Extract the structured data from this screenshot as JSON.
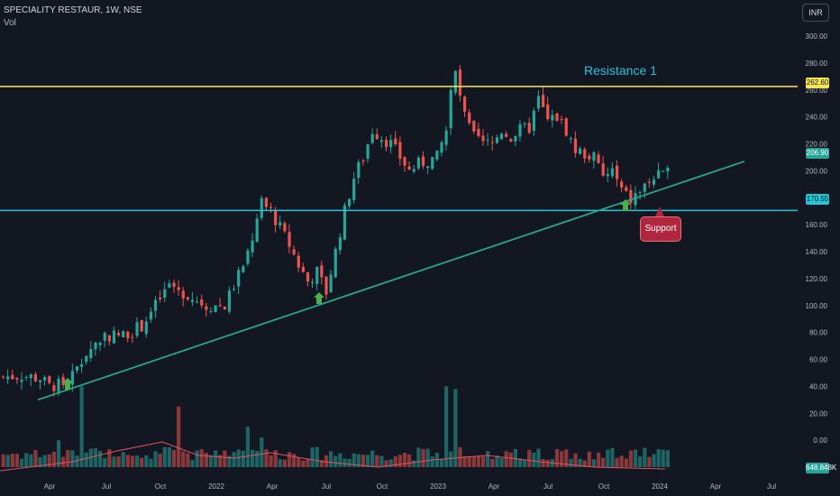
{
  "header": {
    "symbol": "SPECIALITY RESTAUR, 1W, NSE",
    "vol_label": "Vol",
    "currency": "INR"
  },
  "colors": {
    "up": "#26a69a",
    "down": "#ef5350",
    "resistance": "#f5e653",
    "support_line": "#26c6da",
    "trend": "#2aa58a"
  },
  "annotations": {
    "resistance_label": "Resistance 1",
    "support_label": "Support"
  },
  "price_tags": {
    "resistance": "262.60",
    "last": "206.90",
    "support": "170.55",
    "vol": "648.848K"
  },
  "chart_data": {
    "type": "candlestick",
    "title": "SPECIALITY RESTAUR, 1W, NSE",
    "y_ticks": [
      300,
      280,
      260,
      240,
      220,
      200,
      180,
      160,
      140,
      120,
      100,
      80,
      60,
      40,
      20,
      0,
      -20
    ],
    "ylim": [
      -20,
      300
    ],
    "x_ticks": [
      "Apr",
      "Jul",
      "Oct",
      "2022",
      "Apr",
      "Jul",
      "Oct",
      "2023",
      "Apr",
      "Jul",
      "Oct",
      "2024",
      "Apr",
      "Jul"
    ],
    "horizontal_lines": [
      {
        "name": "Resistance 1",
        "value": 262.6
      },
      {
        "name": "Support",
        "value": 170.55
      }
    ],
    "trendline": {
      "from": {
        "date": "2021-03",
        "price": 30
      },
      "to": {
        "date": "2024-06",
        "price": 207
      }
    },
    "price_path": [
      [
        0,
        47
      ],
      [
        4,
        48
      ],
      [
        8,
        46
      ],
      [
        10,
        40
      ],
      [
        14,
        42
      ],
      [
        18,
        65
      ],
      [
        22,
        78
      ],
      [
        26,
        78
      ],
      [
        30,
        85
      ],
      [
        32,
        95
      ],
      [
        36,
        115
      ],
      [
        40,
        108
      ],
      [
        44,
        100
      ],
      [
        48,
        100
      ],
      [
        52,
        130
      ],
      [
        54,
        150
      ],
      [
        56,
        175
      ],
      [
        58,
        170
      ],
      [
        62,
        145
      ],
      [
        64,
        130
      ],
      [
        66,
        118
      ],
      [
        68,
        125
      ],
      [
        70,
        110
      ],
      [
        74,
        170
      ],
      [
        76,
        195
      ],
      [
        78,
        210
      ],
      [
        80,
        230
      ],
      [
        82,
        225
      ],
      [
        84,
        220
      ],
      [
        86,
        210
      ],
      [
        88,
        200
      ],
      [
        90,
        205
      ],
      [
        94,
        210
      ],
      [
        96,
        230
      ],
      [
        97,
        258
      ],
      [
        98,
        272
      ],
      [
        100,
        240
      ],
      [
        102,
        225
      ],
      [
        104,
        220
      ],
      [
        106,
        220
      ],
      [
        108,
        230
      ],
      [
        110,
        225
      ],
      [
        112,
        230
      ],
      [
        114,
        232
      ],
      [
        116,
        253
      ],
      [
        118,
        237
      ],
      [
        120,
        240
      ],
      [
        122,
        230
      ],
      [
        124,
        215
      ],
      [
        128,
        210
      ],
      [
        130,
        195
      ],
      [
        132,
        200
      ],
      [
        134,
        185
      ],
      [
        136,
        178
      ],
      [
        138,
        185
      ],
      [
        140,
        192
      ],
      [
        142,
        196
      ],
      [
        143,
        195
      ],
      [
        144,
        207
      ]
    ],
    "volume_peaks": [
      {
        "week": 12,
        "value": 0
      },
      {
        "week": 17,
        "value": 40
      },
      {
        "week": 38,
        "value": 25
      },
      {
        "week": 53,
        "value": 10
      },
      {
        "week": 56,
        "value": 2
      },
      {
        "week": 96,
        "value": 40
      },
      {
        "week": 98,
        "value": 38
      }
    ]
  }
}
